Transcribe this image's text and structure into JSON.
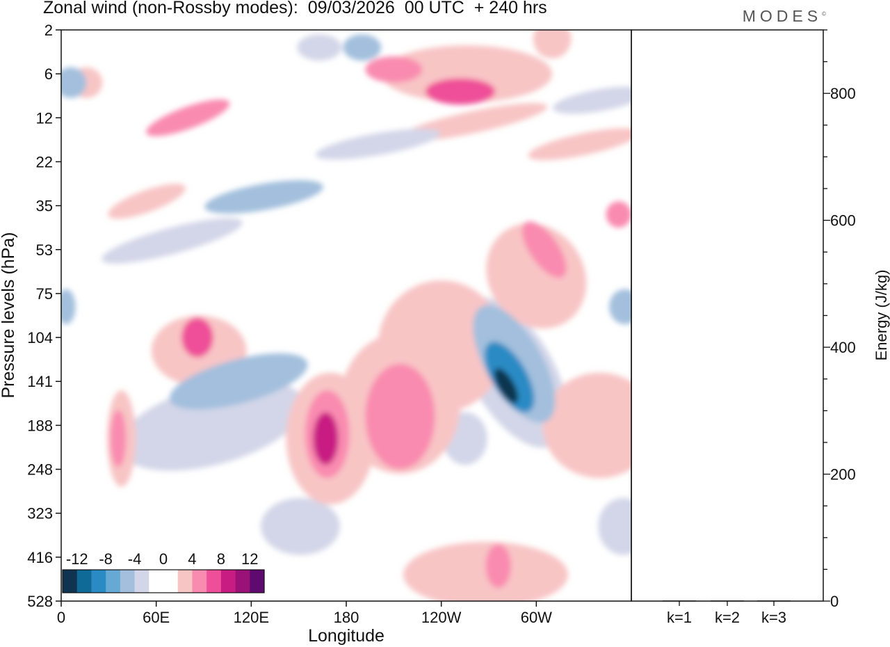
{
  "title": "Zonal wind (non-Rossby modes):  09/03/2026  00 UTC  + 240 hrs",
  "logo": "MODES",
  "logo_mark": "©",
  "colors": {
    "levels": [
      "#10344f",
      "#0f6a97",
      "#2a8bc4",
      "#65a9d4",
      "#a3bfdd",
      "#d3d6e8",
      "#ffffff",
      "#ffffff",
      "#f8c5c5",
      "#f98bb0",
      "#ef4f98",
      "#c81c83",
      "#9a1178",
      "#5e0a6f"
    ]
  },
  "chart_data": [
    {
      "type": "heatmap",
      "title": "Zonal wind (non-Rossby modes)",
      "xlabel": "Longitude",
      "ylabel": "Pressure levels (hPa)",
      "x_ticks": [
        "0",
        "60E",
        "120E",
        "180",
        "120W",
        "60W"
      ],
      "x_tick_values": [
        0,
        60,
        120,
        180,
        240,
        300
      ],
      "xlim": [
        0,
        360
      ],
      "y_ticks": [
        "2",
        "6",
        "12",
        "22",
        "35",
        "53",
        "75",
        "104",
        "141",
        "188",
        "248",
        "323",
        "416",
        "528"
      ],
      "colorbar": {
        "labels": [
          "-12",
          "-8",
          "-4",
          "0",
          "4",
          "8",
          "12"
        ],
        "label_values": [
          -12,
          -8,
          -4,
          0,
          4,
          8,
          12
        ],
        "range": [
          -14,
          14
        ],
        "step": 2
      },
      "blobs": [
        {
          "lon": 281,
          "level": 8.1,
          "value": -14,
          "w": 5,
          "h": 0.9,
          "angle": 30
        },
        {
          "lon": 283,
          "level": 7.9,
          "value": -9,
          "w": 11,
          "h": 1.8,
          "angle": 30
        },
        {
          "lon": 286,
          "level": 7.6,
          "value": -6,
          "w": 18,
          "h": 3.0,
          "angle": 30
        },
        {
          "lon": 285,
          "level": 7.8,
          "value": -3,
          "w": 26,
          "h": 3.8,
          "angle": 30
        },
        {
          "lon": 112,
          "level": 8.0,
          "value": -5,
          "w": 45,
          "h": 1.0,
          "angle": 15
        },
        {
          "lon": 95,
          "level": 9.0,
          "value": -3,
          "w": 60,
          "h": 1.8,
          "angle": 15
        },
        {
          "lon": 128,
          "level": 3.8,
          "value": -5,
          "w": 38,
          "h": 0.6,
          "angle": 10
        },
        {
          "lon": 6,
          "level": 1.2,
          "value": -5,
          "w": 10,
          "h": 0.7,
          "angle": 0
        },
        {
          "lon": 3,
          "level": 6.3,
          "value": -5,
          "w": 6,
          "h": 0.8,
          "angle": 0
        },
        {
          "lon": 356,
          "level": 6.3,
          "value": -5,
          "w": 10,
          "h": 0.8,
          "angle": 0
        },
        {
          "lon": 190,
          "level": 0.4,
          "value": -5,
          "w": 12,
          "h": 0.6,
          "angle": 0
        },
        {
          "lon": 163,
          "level": 0.4,
          "value": -3,
          "w": 14,
          "h": 0.6,
          "angle": 0
        },
        {
          "lon": 151,
          "level": 11.3,
          "value": -3,
          "w": 25,
          "h": 1.3,
          "angle": 0
        },
        {
          "lon": 355,
          "level": 11.3,
          "value": -3,
          "w": 16,
          "h": 1.3,
          "angle": 0
        },
        {
          "lon": 255,
          "level": 9.3,
          "value": -3,
          "w": 14,
          "h": 1.2,
          "angle": 0
        },
        {
          "lon": 210,
          "level": 0.9,
          "value": 5,
          "w": 18,
          "h": 0.6,
          "angle": 0
        },
        {
          "lon": 240,
          "level": 7.2,
          "value": 3,
          "w": 40,
          "h": 3.0,
          "angle": 0
        },
        {
          "lon": 214,
          "level": 8.8,
          "value": 5,
          "w": 22,
          "h": 2.4,
          "angle": 0
        },
        {
          "lon": 214,
          "level": 8.5,
          "value": 3,
          "w": 38,
          "h": 3.2,
          "angle": 0
        },
        {
          "lon": 167,
          "level": 9.3,
          "value": 8,
          "w": 8,
          "h": 1.2,
          "angle": 0
        },
        {
          "lon": 168,
          "level": 9.2,
          "value": 5,
          "w": 14,
          "h": 2.0,
          "angle": 0
        },
        {
          "lon": 170,
          "level": 9.3,
          "value": 3,
          "w": 28,
          "h": 3.0,
          "angle": 0
        },
        {
          "lon": 305,
          "level": 5.0,
          "value": 5,
          "w": 9,
          "h": 1.5,
          "angle": 35
        },
        {
          "lon": 300,
          "level": 5.6,
          "value": 3,
          "w": 30,
          "h": 2.5,
          "angle": 35
        },
        {
          "lon": 340,
          "level": 9.0,
          "value": 3,
          "w": 36,
          "h": 2.4,
          "angle": 0
        },
        {
          "lon": 276,
          "level": 12.2,
          "value": 5,
          "w": 8,
          "h": 1.0,
          "angle": 0
        },
        {
          "lon": 268,
          "level": 12.4,
          "value": 3,
          "w": 52,
          "h": 1.5,
          "angle": 0
        },
        {
          "lon": 86,
          "level": 7.0,
          "value": 6,
          "w": 10,
          "h": 0.9,
          "angle": 0
        },
        {
          "lon": 87,
          "level": 7.3,
          "value": 3,
          "w": 30,
          "h": 1.6,
          "angle": 0
        },
        {
          "lon": 36,
          "level": 9.3,
          "value": 5,
          "w": 5,
          "h": 1.3,
          "angle": 0
        },
        {
          "lon": 38,
          "level": 9.3,
          "value": 3,
          "w": 9,
          "h": 2.2,
          "angle": 0
        },
        {
          "lon": 252,
          "level": 1.4,
          "value": 7,
          "w": 22,
          "h": 0.6,
          "angle": 0
        },
        {
          "lon": 256,
          "level": 1.0,
          "value": 3,
          "w": 54,
          "h": 1.3,
          "angle": 0
        },
        {
          "lon": 310,
          "level": 0.2,
          "value": 3,
          "w": 12,
          "h": 0.9,
          "angle": 0
        },
        {
          "lon": 352,
          "level": 4.2,
          "value": 5,
          "w": 8,
          "h": 0.6,
          "angle": 0
        },
        {
          "lon": 16,
          "level": 1.2,
          "value": 3,
          "w": 10,
          "h": 0.7,
          "angle": 0
        },
        {
          "lon": 54,
          "level": 3.9,
          "value": 3,
          "w": 26,
          "h": 0.5,
          "angle": 20
        },
        {
          "lon": 80,
          "level": 2.0,
          "value": 4,
          "w": 28,
          "h": 0.5,
          "angle": 20
        },
        {
          "lon": 70,
          "level": 4.8,
          "value": -3,
          "w": 46,
          "h": 0.6,
          "angle": 15
        },
        {
          "lon": 260,
          "level": 2.1,
          "value": 3,
          "w": 48,
          "h": 0.5,
          "angle": 12
        },
        {
          "lon": 330,
          "level": 2.6,
          "value": 3,
          "w": 36,
          "h": 0.5,
          "angle": 12
        },
        {
          "lon": 340,
          "level": 1.6,
          "value": -3,
          "w": 30,
          "h": 0.5,
          "angle": 10
        },
        {
          "lon": 200,
          "level": 2.6,
          "value": -3,
          "w": 40,
          "h": 0.5,
          "angle": 10
        }
      ]
    },
    {
      "type": "bar",
      "categories": [
        "k=1",
        "k=2",
        "k=3"
      ],
      "values": [
        1,
        1,
        1
      ],
      "ylabel": "Energy (J/kg)",
      "ylim": [
        0,
        900
      ],
      "y_ticks": [
        0,
        200,
        400,
        600,
        800
      ]
    }
  ]
}
